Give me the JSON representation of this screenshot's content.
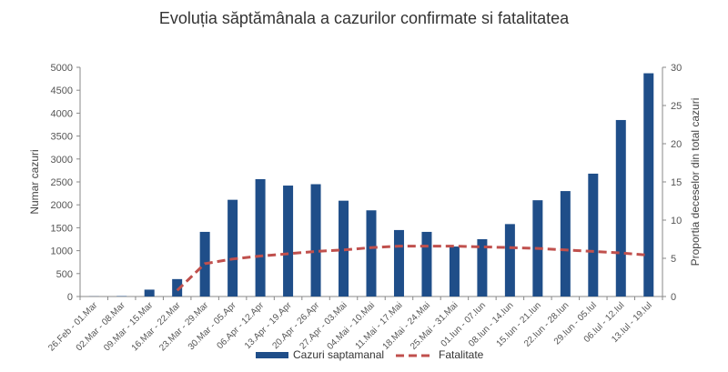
{
  "chart_data": {
    "type": "bar",
    "title": "Evoluția săptămânala a cazurilor confirmate si fatalitatea",
    "categories": [
      "26.Feb - 01.Mar",
      "02.Mar - 08.Mar",
      "09.Mar - 15.Mar",
      "16.Mar - 22.Mar",
      "23.Mar - 29.Mar",
      "30.Mar - 05.Apr",
      "06.Apr - 12.Apr",
      "13.Apr - 19.Apr",
      "20.Apr - 26.Apr",
      "27.Apr - 03.Mai",
      "04.Mai - 10.Mai",
      "11.Mai - 17.Mai",
      "18.Mai - 24.Mai",
      "25.Mai - 31.Mai",
      "01.Iun - 07.Iun",
      "08.Iun - 14.Iun",
      "15.Iun - 21.Iun",
      "22.Iun - 28.Iun",
      "29.Iun - 05.Iul",
      "06.Iul - 12.Iul",
      "13.Iul - 19.Iul"
    ],
    "series": [
      {
        "name": "Cazuri saptamanal",
        "type": "bar",
        "axis": "left",
        "color": "#1F4E89",
        "values": [
          3,
          9,
          150,
          380,
          1410,
          2110,
          2560,
          2420,
          2450,
          2090,
          1880,
          1450,
          1410,
          1090,
          1250,
          1580,
          2100,
          2300,
          2680,
          3850,
          4870
        ]
      },
      {
        "name": "Fatalitate",
        "type": "line",
        "style": "dashed",
        "axis": "right",
        "color": "#C0504D",
        "values": [
          null,
          null,
          null,
          0.8,
          4.3,
          4.9,
          5.3,
          5.6,
          5.9,
          6.1,
          6.4,
          6.6,
          6.6,
          6.6,
          6.5,
          6.4,
          6.3,
          6.1,
          5.9,
          5.7,
          5.4
        ]
      }
    ],
    "ylabel": "Numar cazuri",
    "y2label": "Proportia deceselor din total cazuri",
    "ylim": [
      0,
      5000
    ],
    "y2lim": [
      0,
      30
    ],
    "yticks": [
      0,
      500,
      1000,
      1500,
      2000,
      2500,
      3000,
      3500,
      4000,
      4500,
      5000
    ],
    "y2ticks": [
      0,
      5,
      10,
      15,
      20,
      25,
      30
    ],
    "grid": false,
    "legend_position": "bottom"
  }
}
